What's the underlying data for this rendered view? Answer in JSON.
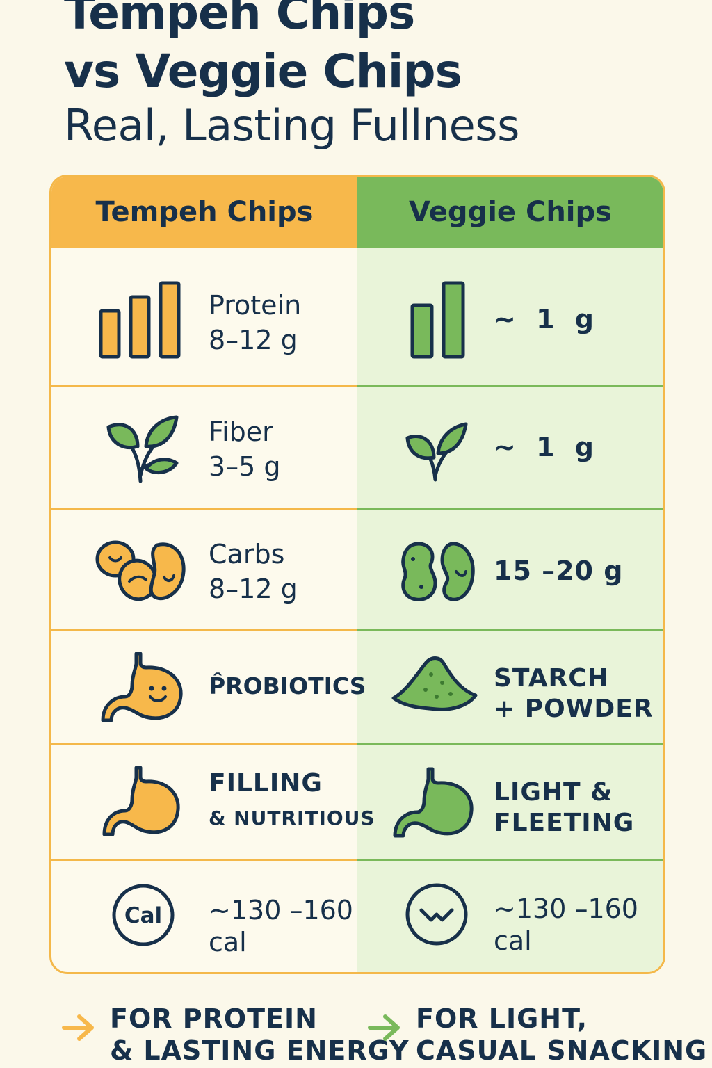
{
  "title_line1": "Tempeh Chips",
  "title_line2": "vs Veggie Chips",
  "subtitle": "Real, Lasting Fullness",
  "columns": {
    "left": "Tempeh Chips",
    "right": "Veggie Chips"
  },
  "rows": [
    {
      "left_icon": "bar-chart-icon",
      "left_line1": "Protein",
      "left_line2": "8–12 g",
      "right_icon": "bar-chart-icon",
      "right_value": "~ 1 g"
    },
    {
      "left_icon": "leaf-sprout-icon",
      "left_line1": "Fiber",
      "left_line2": "3–5 g",
      "right_icon": "leaf-sprout-icon",
      "right_value": "~ 1 g"
    },
    {
      "left_icon": "beans-icon",
      "left_line1": "Carbs",
      "left_line2": "8–12 g",
      "right_icon": "beans-icon",
      "right_value": "15 –20 g"
    },
    {
      "left_icon": "smiling-stomach-icon",
      "left_line1": "P̂ROBIOTICS",
      "right_icon": "powder-pile-icon",
      "right_line1": "STARCH",
      "right_line2": "+ POWDER"
    },
    {
      "left_icon": "stomach-icon",
      "left_line1": "FILLING",
      "left_line2": "& NUTRITIOUS",
      "right_icon": "stomach-icon",
      "right_line1": "LIGHT &",
      "right_line2": "FLEETING"
    },
    {
      "left_icon": "cal-badge-icon",
      "left_badge": "Cal",
      "left_line1": "~130 –160",
      "left_line2": "cal",
      "right_icon": "zigzag-circle-icon",
      "right_line1": "~130 –160",
      "right_line2": "cal"
    }
  ],
  "footer": {
    "left_line1": "FOR PROTEIN",
    "left_line2": "& LASTING ENERGY",
    "right_line1": "FOR LIGHT,",
    "right_line2": "CASUAL SNACKING"
  },
  "colors": {
    "orange": "#f7b84b",
    "green": "#79b95b",
    "navy": "#17304a",
    "cream": "#fbf8ea",
    "light_green": "#e9f4d9"
  }
}
